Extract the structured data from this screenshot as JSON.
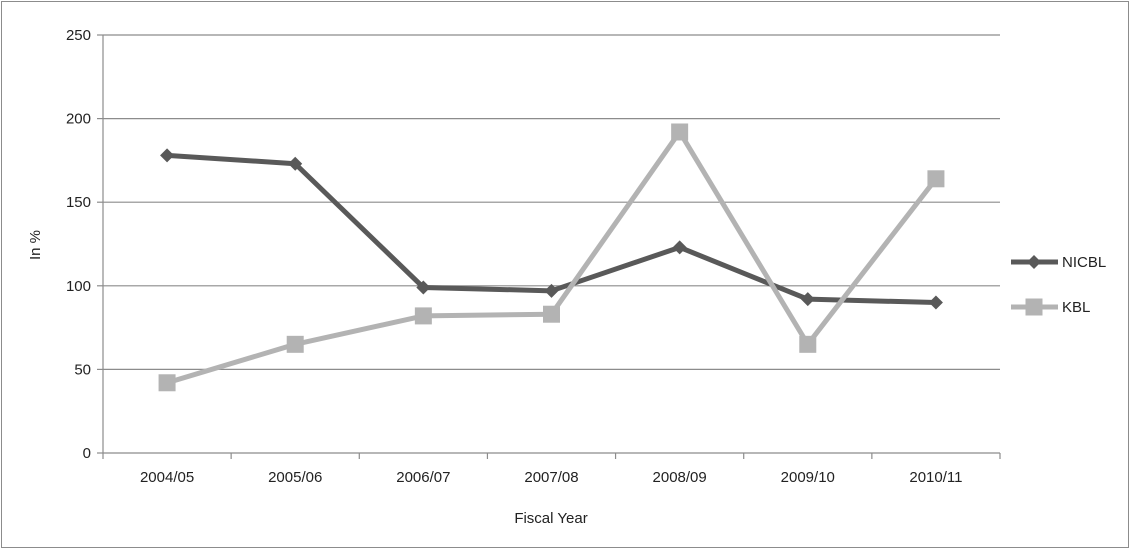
{
  "chart_data": {
    "type": "line",
    "categories": [
      "2004/05",
      "2005/06",
      "2006/07",
      "2007/08",
      "2008/09",
      "2009/10",
      "2010/11"
    ],
    "series": [
      {
        "name": "NICBL",
        "values": [
          178,
          173,
          99,
          97,
          123,
          92,
          90
        ],
        "color": "#595959",
        "marker": "diamond"
      },
      {
        "name": "KBL",
        "values": [
          42,
          65,
          82,
          83,
          192,
          65,
          164
        ],
        "color": "#b3b3b3",
        "marker": "square"
      }
    ],
    "xlabel": "Fiscal Year",
    "ylabel": "In %",
    "ylim": [
      0,
      250
    ],
    "yticks": [
      0,
      50,
      100,
      150,
      200,
      250
    ],
    "grid": "horizontal",
    "legend": "right"
  }
}
